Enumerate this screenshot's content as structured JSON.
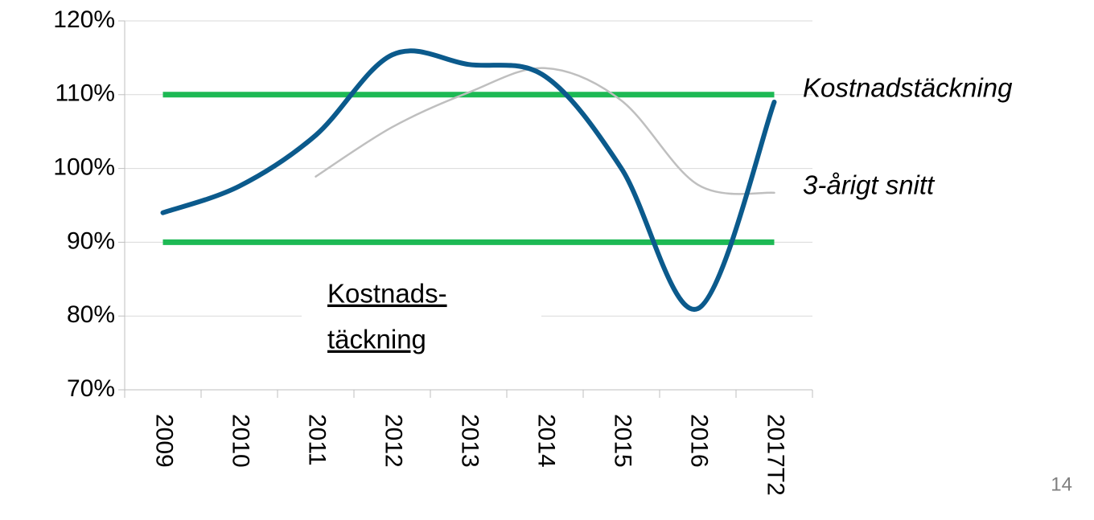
{
  "chart_data": {
    "type": "line",
    "categories": [
      "2009",
      "2010",
      "2011",
      "2012",
      "2013",
      "2014",
      "2015",
      "2016",
      "2017T2"
    ],
    "series": [
      {
        "name": "Kostnadstäckning",
        "color": "#0b5a8c",
        "values": [
          94,
          97.6,
          104.5,
          115.4,
          114.1,
          112.5,
          100,
          81,
          109
        ]
      },
      {
        "name": "3-årigt snitt",
        "color": "#bfbfbf",
        "values": [
          null,
          null,
          98.9,
          105.6,
          110.3,
          113.6,
          109.2,
          97.8,
          96.7
        ]
      }
    ],
    "reference_lines": [
      {
        "value": 110,
        "color": "#1db954"
      },
      {
        "value": 90,
        "color": "#1db954"
      }
    ],
    "ylim": [
      70,
      120
    ],
    "yticks": [
      {
        "value": 70,
        "label": "70%"
      },
      {
        "value": 80,
        "label": "80%"
      },
      {
        "value": 90,
        "label": "90%"
      },
      {
        "value": 100,
        "label": "100%"
      },
      {
        "value": 110,
        "label": "110%"
      },
      {
        "value": 120,
        "label": "120%"
      }
    ],
    "grid": true,
    "annotations": [
      "Kostnads-",
      "täckning"
    ],
    "page_number": "14"
  }
}
